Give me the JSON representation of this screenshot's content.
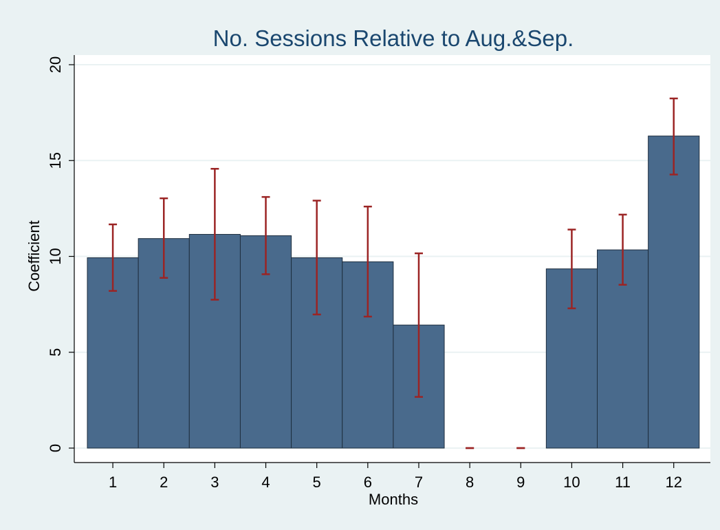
{
  "chart_data": {
    "type": "bar",
    "title": "No. Sessions Relative to Aug.&Sep.",
    "xlabel": "Months",
    "ylabel": "Coefficient",
    "categories": [
      1,
      2,
      3,
      4,
      5,
      6,
      7,
      8,
      9,
      10,
      11,
      12
    ],
    "values": [
      9.93,
      10.93,
      11.15,
      11.08,
      9.93,
      9.72,
      6.42,
      0,
      0,
      9.35,
      10.34,
      16.28
    ],
    "ci_low": [
      8.2,
      8.88,
      7.74,
      9.07,
      6.97,
      6.86,
      2.67,
      0,
      0,
      7.29,
      8.52,
      14.27
    ],
    "ci_high": [
      11.67,
      13.03,
      14.57,
      13.1,
      12.91,
      12.6,
      10.16,
      0,
      0,
      11.4,
      12.18,
      18.24
    ],
    "yticks": [
      0,
      5,
      10,
      15,
      20
    ],
    "ylim": [
      0,
      20
    ],
    "grid": true,
    "colors": {
      "bar": "#496a8c",
      "bar_edge": "#1e2e3e",
      "error": "#9b2424",
      "background": "#eaf2f3",
      "plot": "#ffffff",
      "grid": "#eaf2f3",
      "title": "#1a476f"
    }
  }
}
